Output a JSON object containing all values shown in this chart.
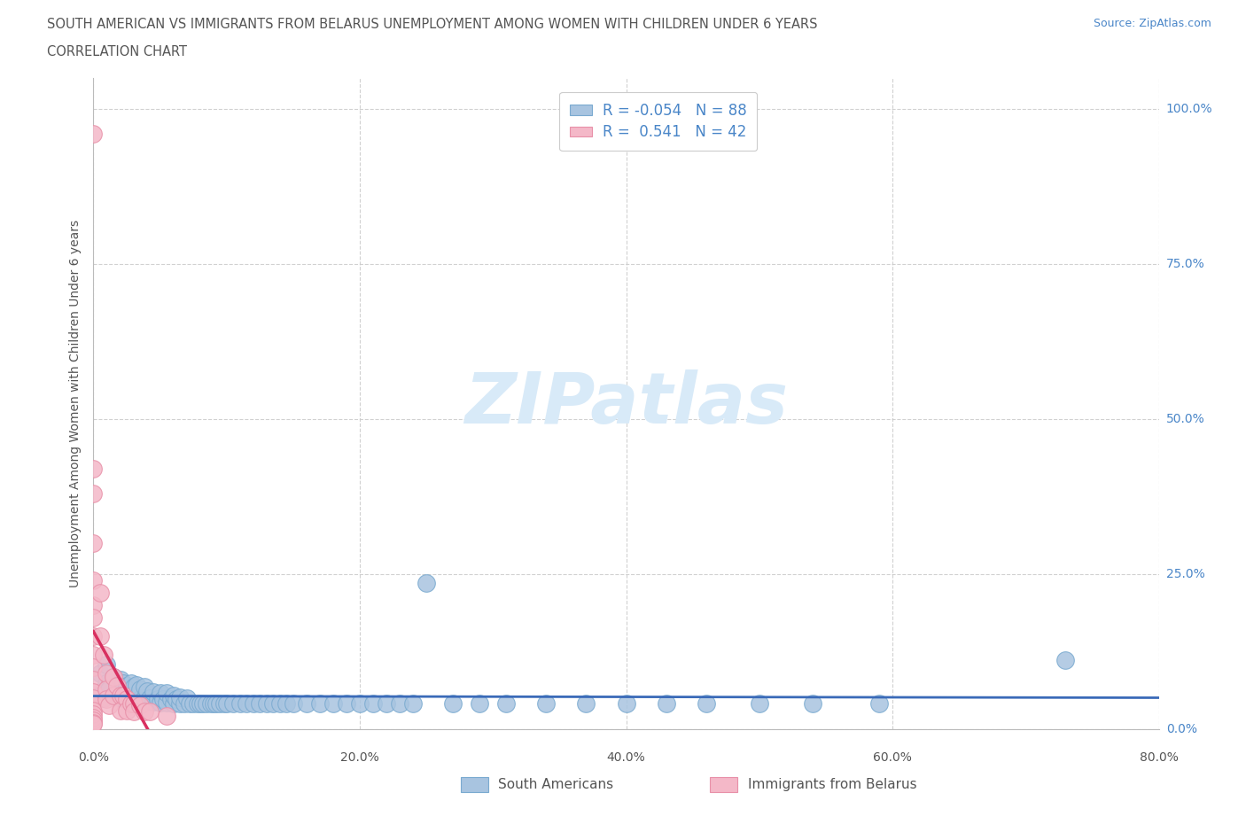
{
  "title_line1": "SOUTH AMERICAN VS IMMIGRANTS FROM BELARUS UNEMPLOYMENT AMONG WOMEN WITH CHILDREN UNDER 6 YEARS",
  "title_line2": "CORRELATION CHART",
  "source": "Source: ZipAtlas.com",
  "ylabel": "Unemployment Among Women with Children Under 6 years",
  "xlim": [
    0.0,
    0.8
  ],
  "ylim": [
    0.0,
    1.05
  ],
  "yticks": [
    0.0,
    0.25,
    0.5,
    0.75,
    1.0
  ],
  "ytick_labels": [
    "0.0%",
    "25.0%",
    "50.0%",
    "75.0%",
    "100.0%"
  ],
  "xticks": [
    0.0,
    0.2,
    0.4,
    0.6,
    0.8
  ],
  "xtick_labels": [
    "0.0%",
    "20.0%",
    "40.0%",
    "60.0%",
    "80.0%"
  ],
  "blue_dot_color": "#a8c4e0",
  "blue_dot_edge": "#7aaad0",
  "pink_dot_color": "#f4b8c8",
  "pink_dot_edge": "#e890a8",
  "blue_line_color": "#3a6ab8",
  "pink_line_color": "#d83060",
  "R_blue": -0.054,
  "N_blue": 88,
  "R_pink": 0.541,
  "N_pink": 42,
  "watermark": "ZIPatlas",
  "legend_south": "South Americans",
  "legend_belarus": "Immigrants from Belarus",
  "blue_scatter_x": [
    0.005,
    0.005,
    0.008,
    0.01,
    0.01,
    0.012,
    0.015,
    0.015,
    0.018,
    0.02,
    0.02,
    0.022,
    0.022,
    0.025,
    0.025,
    0.028,
    0.028,
    0.03,
    0.03,
    0.032,
    0.032,
    0.035,
    0.035,
    0.038,
    0.038,
    0.04,
    0.04,
    0.042,
    0.045,
    0.045,
    0.048,
    0.05,
    0.05,
    0.052,
    0.055,
    0.055,
    0.058,
    0.06,
    0.06,
    0.062,
    0.065,
    0.065,
    0.068,
    0.07,
    0.072,
    0.075,
    0.078,
    0.08,
    0.082,
    0.085,
    0.088,
    0.09,
    0.092,
    0.095,
    0.098,
    0.1,
    0.105,
    0.11,
    0.115,
    0.12,
    0.125,
    0.13,
    0.135,
    0.14,
    0.145,
    0.15,
    0.16,
    0.17,
    0.18,
    0.19,
    0.2,
    0.21,
    0.22,
    0.23,
    0.24,
    0.25,
    0.27,
    0.29,
    0.31,
    0.34,
    0.37,
    0.4,
    0.43,
    0.46,
    0.5,
    0.54,
    0.59,
    0.73
  ],
  "blue_scatter_y": [
    0.06,
    0.09,
    0.05,
    0.075,
    0.105,
    0.065,
    0.055,
    0.085,
    0.06,
    0.05,
    0.08,
    0.055,
    0.075,
    0.05,
    0.07,
    0.055,
    0.075,
    0.048,
    0.068,
    0.052,
    0.072,
    0.048,
    0.065,
    0.05,
    0.068,
    0.045,
    0.062,
    0.05,
    0.045,
    0.06,
    0.048,
    0.043,
    0.058,
    0.048,
    0.043,
    0.058,
    0.048,
    0.042,
    0.055,
    0.048,
    0.042,
    0.052,
    0.042,
    0.05,
    0.042,
    0.042,
    0.042,
    0.042,
    0.042,
    0.042,
    0.042,
    0.042,
    0.042,
    0.042,
    0.042,
    0.042,
    0.042,
    0.042,
    0.042,
    0.042,
    0.042,
    0.042,
    0.042,
    0.042,
    0.042,
    0.042,
    0.042,
    0.042,
    0.042,
    0.042,
    0.042,
    0.042,
    0.042,
    0.042,
    0.042,
    0.236,
    0.042,
    0.042,
    0.042,
    0.042,
    0.042,
    0.042,
    0.042,
    0.042,
    0.042,
    0.042,
    0.042,
    0.112
  ],
  "pink_scatter_x": [
    0.0,
    0.0,
    0.0,
    0.0,
    0.0,
    0.0,
    0.0,
    0.0,
    0.0,
    0.0,
    0.0,
    0.0,
    0.0,
    0.0,
    0.0,
    0.0,
    0.0,
    0.0,
    0.0,
    0.0,
    0.005,
    0.005,
    0.008,
    0.01,
    0.01,
    0.01,
    0.012,
    0.015,
    0.015,
    0.018,
    0.02,
    0.02,
    0.022,
    0.025,
    0.025,
    0.028,
    0.03,
    0.03,
    0.035,
    0.038,
    0.042,
    0.055
  ],
  "pink_scatter_y": [
    0.96,
    0.42,
    0.38,
    0.3,
    0.24,
    0.2,
    0.18,
    0.15,
    0.12,
    0.1,
    0.08,
    0.06,
    0.05,
    0.04,
    0.03,
    0.025,
    0.018,
    0.014,
    0.01,
    0.008,
    0.22,
    0.15,
    0.12,
    0.09,
    0.065,
    0.048,
    0.038,
    0.085,
    0.055,
    0.07,
    0.055,
    0.03,
    0.055,
    0.048,
    0.03,
    0.042,
    0.042,
    0.028,
    0.038,
    0.028,
    0.028,
    0.022
  ],
  "title_color": "#555555",
  "source_color": "#4a86c8",
  "ylabel_color": "#555555",
  "xtick_color": "#555555",
  "ytick_color": "#4a86c8",
  "grid_color": "#cccccc",
  "watermark_color": "#d8eaf8",
  "legend_text_color": "#4a86c8",
  "legend_label_color": "#555555"
}
